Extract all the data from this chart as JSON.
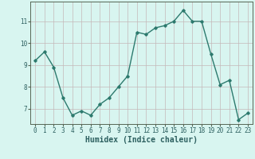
{
  "x": [
    0,
    1,
    2,
    3,
    4,
    5,
    6,
    7,
    8,
    9,
    10,
    11,
    12,
    13,
    14,
    15,
    16,
    17,
    18,
    19,
    20,
    21,
    22,
    23
  ],
  "y": [
    9.2,
    9.6,
    8.9,
    7.5,
    6.7,
    6.9,
    6.7,
    7.2,
    7.5,
    8.0,
    8.5,
    10.5,
    10.4,
    10.7,
    10.8,
    11.0,
    11.5,
    11.0,
    11.0,
    9.5,
    8.1,
    8.3,
    6.5,
    6.8
  ],
  "line_color": "#2d7a6e",
  "marker": "D",
  "marker_size": 1.8,
  "bg_color": "#d8f5f0",
  "grid_color": "#c4b8b8",
  "xlabel": "Humidex (Indice chaleur)",
  "xlabel_fontsize": 7,
  "yticks": [
    7,
    8,
    9,
    10,
    11
  ],
  "xticks": [
    0,
    1,
    2,
    3,
    4,
    5,
    6,
    7,
    8,
    9,
    10,
    11,
    12,
    13,
    14,
    15,
    16,
    17,
    18,
    19,
    20,
    21,
    22,
    23
  ],
  "ylim": [
    6.3,
    11.9
  ],
  "xlim": [
    -0.5,
    23.5
  ],
  "tick_fontsize": 5.5,
  "linewidth": 1.0
}
